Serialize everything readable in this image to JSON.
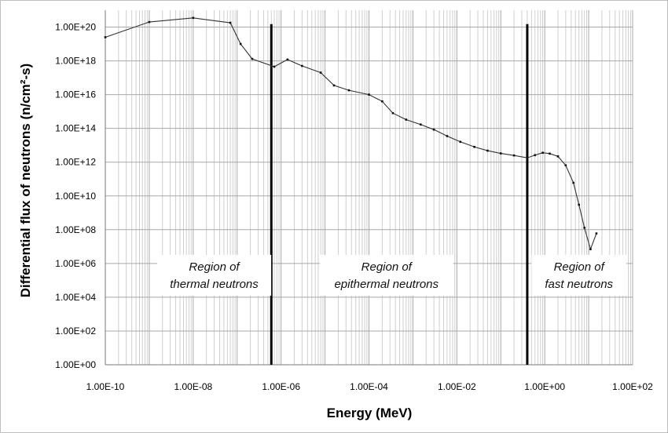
{
  "chart_data": {
    "type": "line",
    "title": "",
    "xlabel": "Energy (MeV)",
    "ylabel": "Differential  flux of neutrons (n/cm²-s)",
    "x_scale": "log",
    "y_scale": "log",
    "xlim": [
      1e-10,
      100
    ],
    "ylim": [
      1,
      1e+21
    ],
    "x_ticks": [
      1e-10,
      1e-08,
      1e-06,
      0.0001,
      0.01,
      1,
      100
    ],
    "x_tick_labels": [
      "1.00E-10",
      "1.00E-08",
      "1.00E-06",
      "1.00E-04",
      "1.00E-02",
      "1.00E+00",
      "1.00E+02"
    ],
    "y_ticks": [
      1,
      100.0,
      10000.0,
      1000000.0,
      100000000.0,
      10000000000.0,
      1000000000000.0,
      100000000000000.0,
      1e+16,
      1e+18,
      1e+20
    ],
    "y_tick_labels": [
      "1.00E+00",
      "1.00E+02",
      "1.00E+04",
      "1.00E+06",
      "1.00E+08",
      "1.00E+10",
      "1.00E+12",
      "1.00E+14",
      "1.00E+16",
      "1.00E+18",
      "1.00E+20"
    ],
    "grid": {
      "major": true,
      "x_minor": true
    },
    "series": [
      {
        "values": [
          [
            1e-10,
            2.5e+19
          ],
          [
            1e-09,
            2e+20
          ],
          [
            1e-08,
            3.5e+20
          ],
          [
            7e-08,
            1.8e+20
          ],
          [
            1.2e-07,
            1e+19
          ],
          [
            2.2e-07,
            1.3e+18
          ],
          [
            7e-07,
            4.5e+17
          ],
          [
            1.4e-06,
            1.2e+18
          ],
          [
            3e-06,
            5e+17
          ],
          [
            8e-06,
            2e+17
          ],
          [
            1.6e-05,
            3.5e+16
          ],
          [
            3.5e-05,
            1.8e+16
          ],
          [
            0.0001,
            1e+16
          ],
          [
            0.0002,
            4000000000000000.0
          ],
          [
            0.00035,
            800000000000000.0
          ],
          [
            0.0007,
            330000000000000.0
          ],
          [
            0.0015,
            170000000000000.0
          ],
          [
            0.003,
            85000000000000.0
          ],
          [
            0.006,
            35000000000000.0
          ],
          [
            0.012,
            16000000000000.0
          ],
          [
            0.025,
            8000000000000.0
          ],
          [
            0.05,
            4800000000000.0
          ],
          [
            0.1,
            3300000000000.0
          ],
          [
            0.2,
            2500000000000.0
          ],
          [
            0.4,
            1800000000000.0
          ],
          [
            0.6,
            2600000000000.0
          ],
          [
            0.9,
            3600000000000.0
          ],
          [
            1.3,
            3200000000000.0
          ],
          [
            2,
            2200000000000.0
          ],
          [
            3,
            650000000000.0
          ],
          [
            4.5,
            60000000000.0
          ],
          [
            6,
            3000000000.0
          ],
          [
            8,
            130000000.0
          ],
          [
            11,
            7000000.0
          ],
          [
            15,
            60000000.0
          ]
        ]
      }
    ],
    "region_boundaries": [
      6e-07,
      0.4
    ],
    "annotations": [
      {
        "lines": [
          "Region of",
          "thermal neutrons"
        ],
        "x": 3e-08,
        "y": 200000.0
      },
      {
        "lines": [
          "Region of",
          "epithermal neutrons"
        ],
        "x": 0.00025,
        "y": 200000.0
      },
      {
        "lines": [
          "Region of",
          "fast neutrons"
        ],
        "x": 6,
        "y": 200000.0
      }
    ]
  }
}
